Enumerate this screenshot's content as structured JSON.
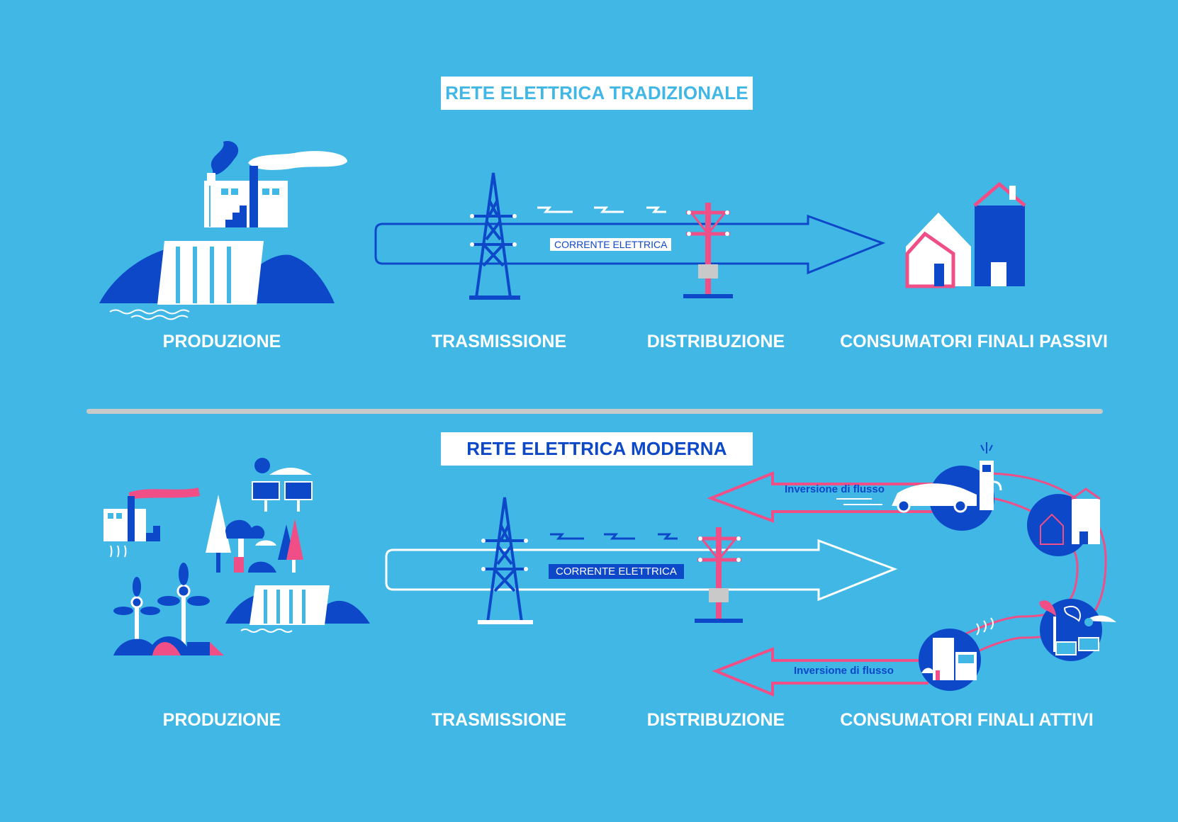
{
  "diagram": {
    "traditional": {
      "title": "RETE ELETTRICA TRADIZIONALE",
      "stages": [
        "PRODUZIONE",
        "TRASMISSIONE",
        "DISTRIBUZIONE",
        "CONSUMATORI FINALI PASSIVI"
      ],
      "arrow_label": "CORRENTE ELETTRICA"
    },
    "modern": {
      "title": "RETE ELETTRICA MODERNA",
      "stages": [
        "PRODUZIONE",
        "TRASMISSIONE",
        "DISTRIBUZIONE",
        "CONSUMATORI FINALI ATTIVI"
      ],
      "arrow_label": "CORRENTE ELETTRICA",
      "reverse_flow_label_upper": "Inversione di flusso",
      "reverse_flow_label_lower": "Inversione di flusso"
    },
    "colors": {
      "background": "#41b7e6",
      "dark_blue": "#0c48c8",
      "pink": "#ef4f86",
      "white": "#ffffff",
      "divider": "#c9c9c9"
    },
    "icons": [
      "factory-icon",
      "hydro-dam-icon",
      "power-pylon-icon",
      "utility-pole-icon",
      "houses-icon",
      "solar-panel-icon",
      "tree-icon",
      "wind-turbine-icon",
      "electric-car-icon",
      "charging-station-icon",
      "smart-home-icon",
      "lightning-icon"
    ]
  }
}
